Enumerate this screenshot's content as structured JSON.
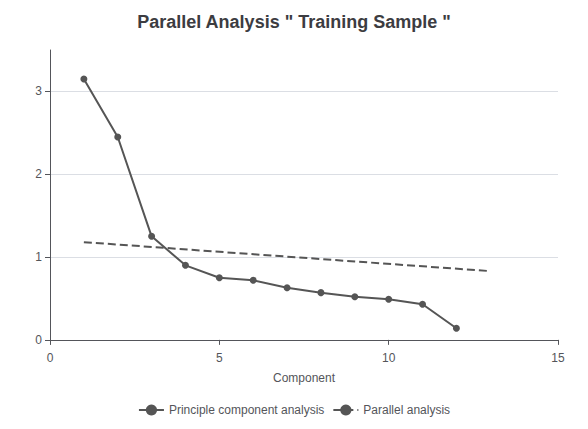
{
  "chart_data": {
    "type": "line",
    "title": "Parallel Analysis \" Training Sample \"",
    "xlabel": "Component",
    "series": [
      {
        "name": "Principle component analysis",
        "color": "#555555",
        "marker": "circle",
        "line_style": "solid",
        "x": [
          1,
          2,
          3,
          4,
          5,
          6,
          7,
          8,
          9,
          10,
          11,
          12
        ],
        "values": [
          3.15,
          2.45,
          1.25,
          0.9,
          0.75,
          0.72,
          0.63,
          0.57,
          0.52,
          0.49,
          0.43,
          0.14
        ]
      },
      {
        "name": "Parallel analysis",
        "color": "#555555",
        "marker": "none",
        "line_style": "dashed",
        "x": [
          1,
          13
        ],
        "values": [
          1.18,
          0.83
        ]
      }
    ],
    "xlim": [
      0,
      15
    ],
    "ylim": [
      -0.05,
      3.5
    ],
    "xticks": [
      0,
      5,
      10,
      15
    ],
    "yticks": [
      0,
      1,
      2,
      3
    ],
    "grid": "y",
    "legend": "bottom"
  }
}
